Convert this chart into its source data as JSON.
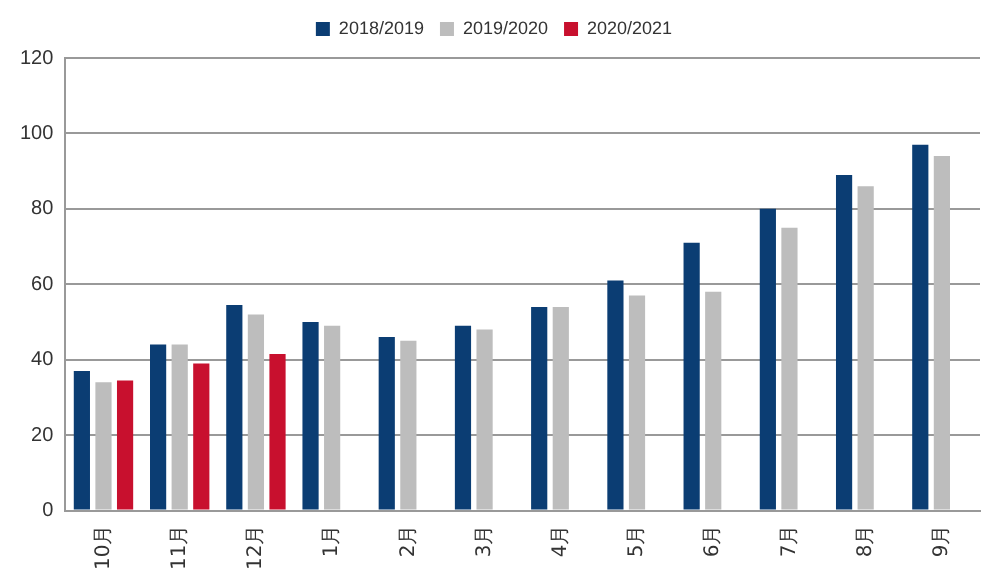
{
  "chart_data": {
    "type": "bar",
    "categories": [
      "10月",
      "11月",
      "12月",
      "1月",
      "2月",
      "3月",
      "4月",
      "5月",
      "6月",
      "7月",
      "8月",
      "9月"
    ],
    "series": [
      {
        "name": "2018/2019",
        "color": "#0b3d73",
        "values": [
          37,
          44,
          54.5,
          50,
          46,
          49,
          54,
          61,
          71,
          80,
          89,
          97
        ]
      },
      {
        "name": "2019/2020",
        "color": "#bdbdbd",
        "values": [
          34,
          44,
          52,
          49,
          45,
          48,
          54,
          57,
          58,
          75,
          86,
          94
        ]
      },
      {
        "name": "2020/2021",
        "color": "#c8102e",
        "values": [
          34.5,
          39,
          41.5,
          null,
          null,
          null,
          null,
          null,
          null,
          null,
          null,
          null
        ]
      }
    ],
    "ylim": [
      0,
      120
    ],
    "yticks": [
      0,
      20,
      40,
      60,
      80,
      100,
      120
    ],
    "grid": "y",
    "legend": "top"
  }
}
